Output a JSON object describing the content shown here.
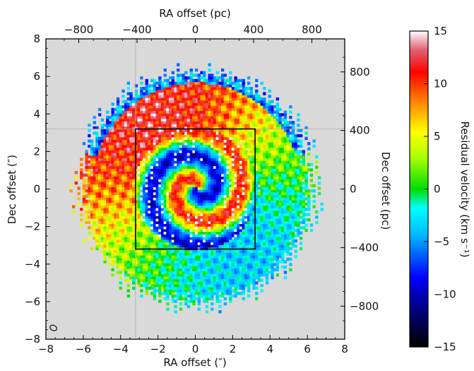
{
  "chart_data": {
    "type": "heatmap",
    "title": "",
    "xlabel": "RA offset (″)",
    "ylabel": "Dec offset (″)",
    "x2label": "RA offset (pc)",
    "y2label": "Dec offset (pc)",
    "xlim": [
      -8,
      8
    ],
    "ylim": [
      -8,
      8
    ],
    "x_ticks": [
      -8,
      -6,
      -4,
      -2,
      0,
      2,
      4,
      6,
      8
    ],
    "x_tick_labels": [
      "−8",
      "−6",
      "−4",
      "−2",
      "0",
      "2",
      "4",
      "6",
      "8"
    ],
    "y_ticks": [
      -8,
      -6,
      -4,
      -2,
      0,
      2,
      4,
      6,
      8
    ],
    "y_tick_labels": [
      "−8",
      "−6",
      "−4",
      "−2",
      "0",
      "2",
      "4",
      "6",
      "8"
    ],
    "top_ticks_pc": [
      -800,
      -400,
      0,
      400,
      800
    ],
    "top_tick_labels": [
      "−800",
      "−400",
      "0",
      "400",
      "800"
    ],
    "right_ticks_pc": [
      800,
      400,
      0,
      -400,
      -800
    ],
    "right_tick_labels": [
      "800",
      "400",
      "0",
      "−400",
      "−800"
    ],
    "arcsec_per_pc": 0.0078,
    "colorbar": {
      "label": "Residual velocity (km s⁻¹)",
      "range": [
        -15,
        15
      ],
      "ticks": [
        15,
        10,
        5,
        0,
        -5,
        -10,
        -15
      ],
      "tick_labels": [
        "15",
        "10",
        "5",
        "0",
        "−5",
        "−10",
        "−15"
      ],
      "colormap": "jet-like (black-blue-cyan-green-yellow-red-white)"
    },
    "zoom_box": {
      "x": [
        -3.2,
        3.2
      ],
      "y": [
        -3.2,
        3.2
      ]
    },
    "crosshair": {
      "x": -3.2,
      "y": 3.2
    },
    "beam_ellipse": {
      "x": -7.6,
      "y": -7.4
    },
    "background_color": "#d9d9d9"
  }
}
